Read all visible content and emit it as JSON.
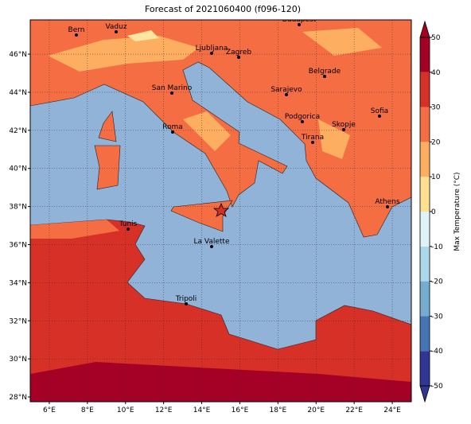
{
  "chart_data": {
    "type": "map",
    "title": "Forecast of 2021060400 (f096-120)",
    "xlim": [
      5,
      25
    ],
    "ylim": [
      27.75,
      47.8
    ],
    "xticks": [
      {
        "value": 6,
        "label": "6°E"
      },
      {
        "value": 8,
        "label": "8°E"
      },
      {
        "value": 10,
        "label": "10°E"
      },
      {
        "value": 12,
        "label": "12°E"
      },
      {
        "value": 14,
        "label": "14°E"
      },
      {
        "value": 16,
        "label": "16°E"
      },
      {
        "value": 18,
        "label": "18°E"
      },
      {
        "value": 20,
        "label": "20°E"
      },
      {
        "value": 22,
        "label": "22°E"
      },
      {
        "value": 24,
        "label": "24°E"
      }
    ],
    "yticks": [
      {
        "value": 28,
        "label": "28°N"
      },
      {
        "value": 30,
        "label": "30°N"
      },
      {
        "value": 32,
        "label": "32°N"
      },
      {
        "value": 34,
        "label": "34°N"
      },
      {
        "value": 36,
        "label": "36°N"
      },
      {
        "value": 38,
        "label": "38°N"
      },
      {
        "value": 40,
        "label": "40°N"
      },
      {
        "value": 42,
        "label": "42°N"
      },
      {
        "value": 44,
        "label": "44°N"
      },
      {
        "value": 46,
        "label": "46°N"
      }
    ],
    "grid": true,
    "cities": [
      "Bern",
      "Vaduz",
      "Budapest",
      "Ljubljana",
      "Zagreb",
      "Belgrade",
      "San Marino",
      "Sarajevo",
      "Sofia",
      "Podgorica",
      "Skopje",
      "Roma",
      "Tirana",
      "Athens",
      "Tunis",
      "La Valette",
      "Tripoli"
    ],
    "colorbar": {
      "label": "Max Temperature (°C)",
      "lim": [
        -50,
        50
      ],
      "ticks": [
        -50,
        -40,
        -30,
        -20,
        -10,
        0,
        10,
        20,
        30,
        40,
        50
      ],
      "levels": [
        -50,
        -40,
        -30,
        -20,
        -10,
        0,
        10,
        20,
        30,
        40,
        50
      ],
      "colors": [
        "#313695",
        "#4575b4",
        "#74add1",
        "#abd9e9",
        "#e0f3f8",
        "#fee090",
        "#fdae61",
        "#f46d43",
        "#d73027",
        "#a50026"
      ]
    }
  }
}
